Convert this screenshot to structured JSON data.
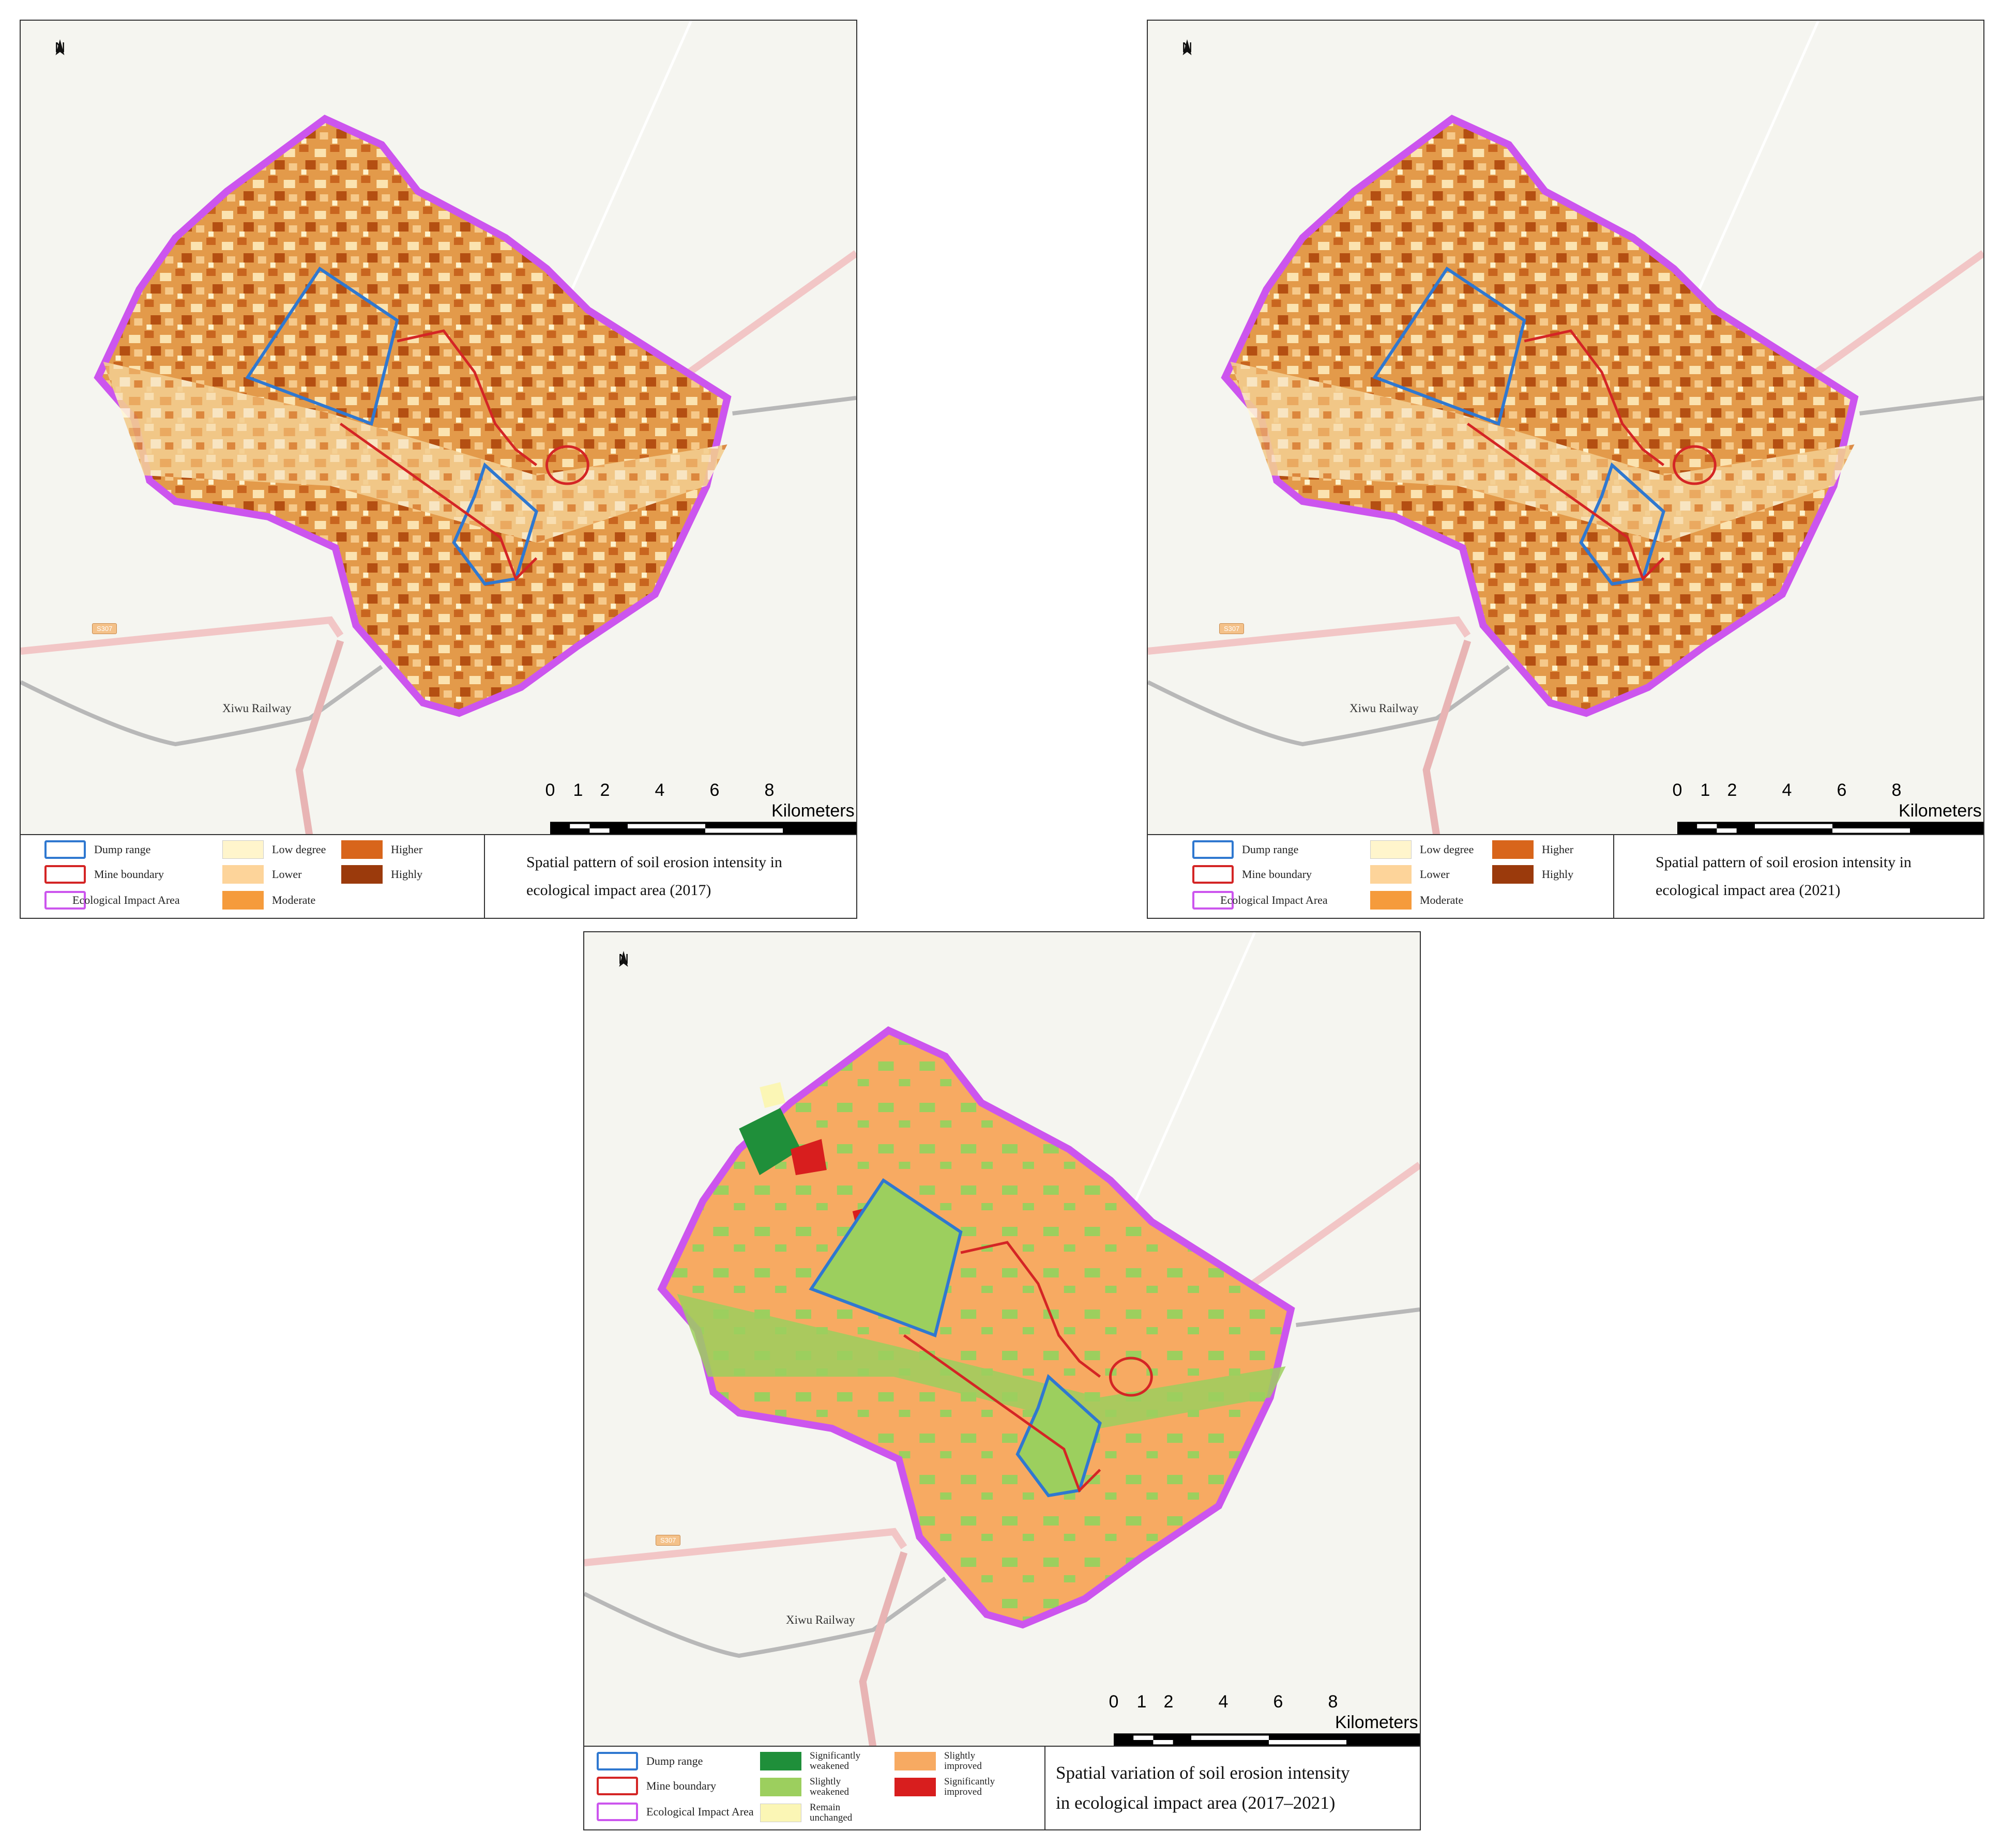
{
  "north_label": "N",
  "scale": {
    "ticks": [
      "0",
      "1",
      "2",
      "4",
      "6",
      "8"
    ],
    "unit": "Kilometers"
  },
  "map_labels": {
    "railway": "Xiwu Railway",
    "road": "S307"
  },
  "colors": {
    "dump_range": "#2f78d0",
    "mine_boundary": "#d42525",
    "ecological_impact_area": "#cc55ee",
    "low_degree": "#fff5cc",
    "lower": "#fdd49a",
    "moderate": "#f59b3c",
    "higher": "#d8651b",
    "highly": "#9b3a0c",
    "significantly_weakened": "#1f8f3a",
    "slightly_weakened": "#9ccf5e",
    "remain_unchanged": "#fbf6b5",
    "slightly_improved": "#f7aa62",
    "significantly_improved": "#d81e1e"
  },
  "panels": [
    {
      "legend": {
        "boundaries": [
          "Dump range",
          "Mine boundary",
          "Ecological Impact Area"
        ],
        "classes": [
          "Low degree",
          "Lower",
          "Moderate",
          "Higher",
          "Highly"
        ]
      },
      "title": "Spatial pattern of soil erosion intensity in\necological impact area (2017)"
    },
    {
      "legend": {
        "boundaries": [
          "Dump range",
          "Mine boundary",
          "Ecological Impact Area"
        ],
        "classes": [
          "Low degree",
          "Lower",
          "Moderate",
          "Higher",
          "Highly"
        ]
      },
      "title": "Spatial pattern of soil erosion intensity in\necological impact area (2021)"
    },
    {
      "legend": {
        "boundaries": [
          "Dump range",
          "Mine boundary",
          "Ecological Impact Area"
        ],
        "classes": [
          "Significantly\nweakened",
          "Slightly\nweakened",
          "Remain\nunchanged",
          "Slightly\nimproved",
          "Significantly\nimproved"
        ]
      },
      "title": "Spatial variation of soil erosion intensity\nin ecological impact area (2017–2021)"
    }
  ]
}
